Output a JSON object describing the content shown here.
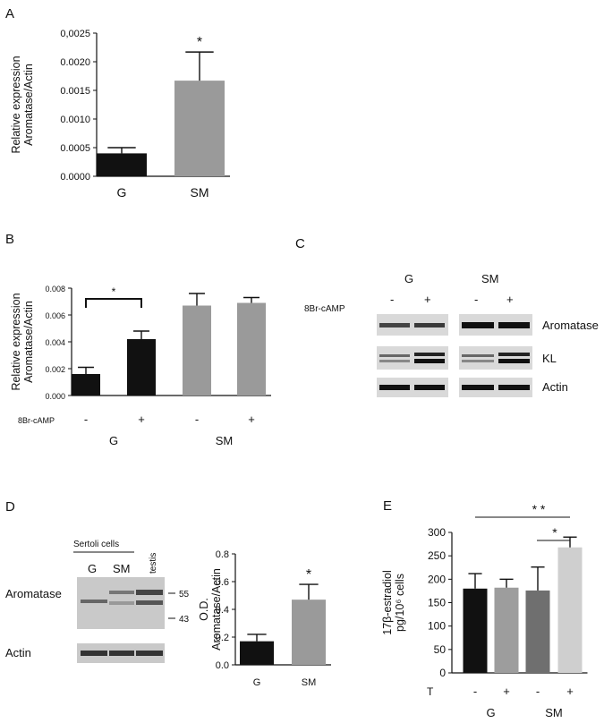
{
  "panels": {
    "a": {
      "letter": "A"
    },
    "b": {
      "letter": "B"
    },
    "c": {
      "letter": "C"
    },
    "d": {
      "letter": "D"
    },
    "e": {
      "letter": "E"
    }
  },
  "chart_data": [
    {
      "id": "A",
      "type": "bar",
      "categories": [
        "G",
        "SM"
      ],
      "values": [
        0.0004,
        0.00167
      ],
      "errors": [
        0.0001,
        0.0005
      ],
      "colors": [
        "#111111",
        "#9a9a9a"
      ],
      "ylabel_lines": [
        "Relative expression",
        "Aromatase/Actin"
      ],
      "ylim": [
        0,
        0.0025
      ],
      "yticks": [
        "0.0000",
        "0.0005",
        "0.0010",
        "0.0015",
        "0.0020",
        "0,0025"
      ],
      "annotation": "*"
    },
    {
      "id": "B",
      "type": "bar",
      "treatment_label": "8Br-cAMP",
      "treatments": [
        "-",
        "+",
        "-",
        "+"
      ],
      "groups": [
        "G",
        "SM"
      ],
      "values": [
        0.0016,
        0.0042,
        0.0067,
        0.0069
      ],
      "errors": [
        0.0005,
        0.0006,
        0.0009,
        0.0004
      ],
      "colors": [
        "#111111",
        "#111111",
        "#9a9a9a",
        "#9a9a9a"
      ],
      "ylabel_lines": [
        "Relative expression",
        "Aromatase/Actin"
      ],
      "ylim": [
        0,
        0.008
      ],
      "yticks": [
        "0.000",
        "0.002",
        "0.004",
        "0.006",
        "0.008"
      ],
      "annotation": "*"
    },
    {
      "id": "D",
      "type": "bar",
      "categories": [
        "G",
        "SM"
      ],
      "values": [
        0.17,
        0.47
      ],
      "errors": [
        0.05,
        0.11
      ],
      "colors": [
        "#111111",
        "#9a9a9a"
      ],
      "ylabel_lines": [
        "O.D.",
        "Aromatase/Actin"
      ],
      "ylim": [
        0,
        0.8
      ],
      "yticks": [
        "0.0",
        "0.2",
        "0.4",
        "0.6",
        "0.8"
      ],
      "annotation": "*"
    },
    {
      "id": "E",
      "type": "bar",
      "treatment_label": "T",
      "treatments": [
        "-",
        "+",
        "-",
        "+"
      ],
      "groups": [
        "G",
        "SM"
      ],
      "values": [
        180,
        182,
        176,
        268
      ],
      "errors": [
        32,
        18,
        50,
        22
      ],
      "colors": [
        "#111111",
        "#9d9d9d",
        "#6f6f6f",
        "#cfcfcf"
      ],
      "ylabel_lines": [
        "17β-estradiol",
        "pg/10⁶ cells"
      ],
      "ylim": [
        0,
        300
      ],
      "yticks": [
        "0",
        "50",
        "100",
        "150",
        "200",
        "250",
        "300"
      ],
      "annotations": [
        "* *",
        "*"
      ]
    }
  ],
  "gel_c": {
    "groups": [
      "G",
      "SM"
    ],
    "treatment_label": "8Br-cAMP",
    "treatments": [
      "-",
      "+",
      "-",
      "+"
    ],
    "bands": [
      "Aromatase",
      "KL",
      "Actin"
    ]
  },
  "western_d": {
    "header": "Sertoli cells",
    "lanes": [
      "G",
      "SM",
      "testis"
    ],
    "rows": [
      "Aromatase",
      "Actin"
    ],
    "markers": [
      "55",
      "43"
    ]
  }
}
